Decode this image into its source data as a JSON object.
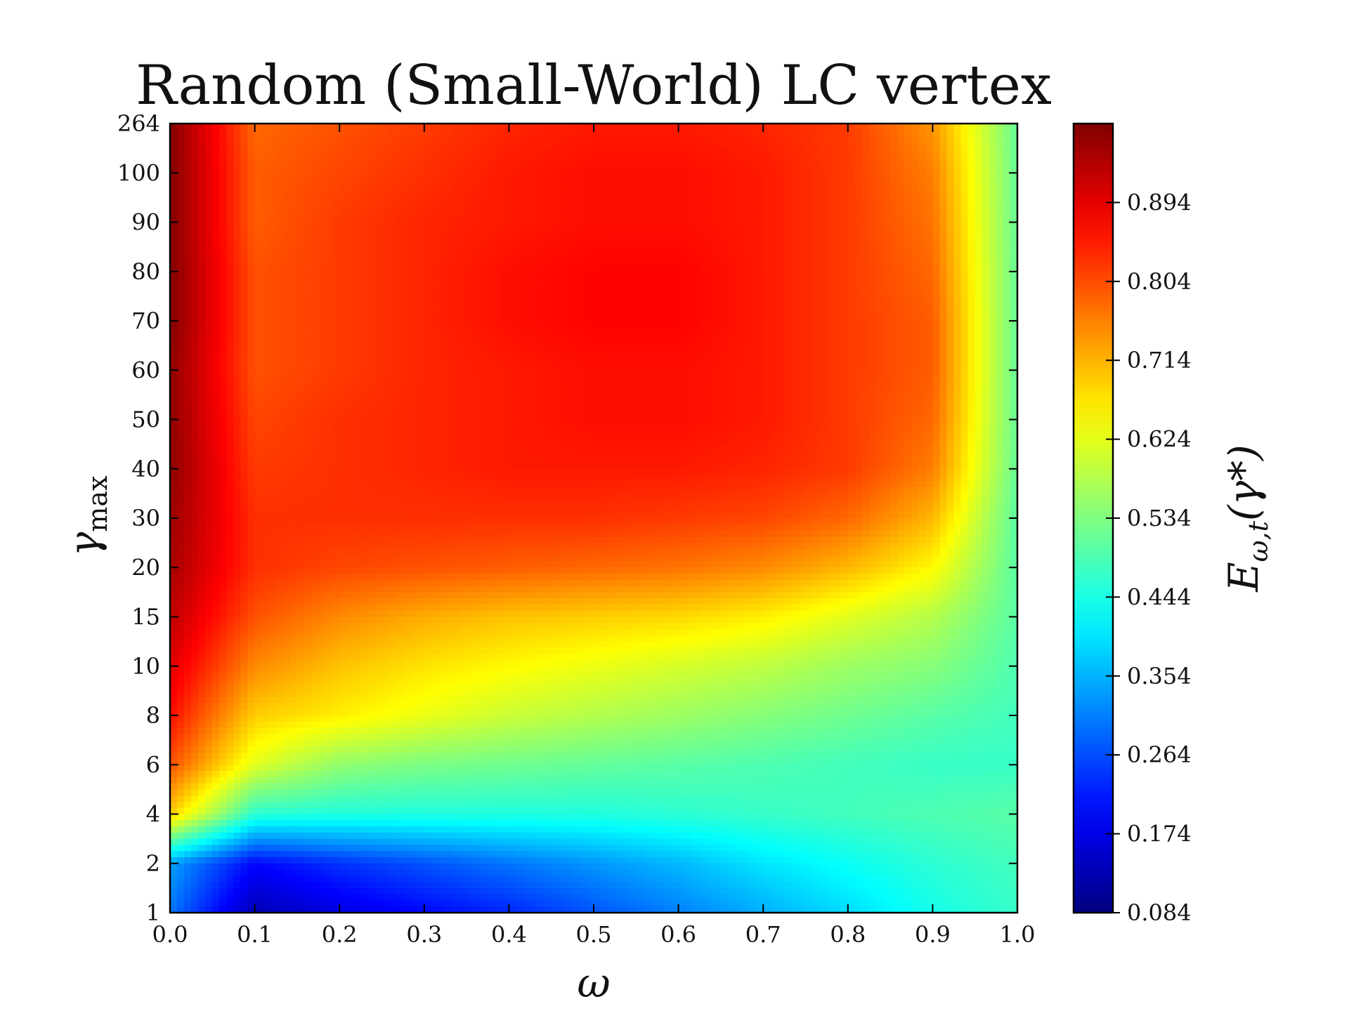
{
  "chart_data": {
    "type": "heatmap",
    "title": "Random (Small-World) LC vertex",
    "xlabel": "ω",
    "ylabel": "γmax",
    "ylabel_main": "γ",
    "ylabel_sub": "max",
    "colorbar_label": "E",
    "colorbar_label_sub": "ω,t",
    "colorbar_label_arg": "(γ*)",
    "x": [
      0.0,
      0.1,
      0.2,
      0.3,
      0.4,
      0.5,
      0.6,
      0.7,
      0.8,
      0.9,
      1.0
    ],
    "x_tick_labels": [
      "0.0",
      "0.1",
      "0.2",
      "0.3",
      "0.4",
      "0.5",
      "0.6",
      "0.7",
      "0.8",
      "0.9",
      "1.0"
    ],
    "y_tick_labels": [
      "1",
      "2",
      "4",
      "6",
      "8",
      "10",
      "15",
      "20",
      "30",
      "40",
      "50",
      "60",
      "70",
      "80",
      "90",
      "100",
      "264"
    ],
    "z": [
      [
        0.3,
        0.13,
        0.17,
        0.2,
        0.23,
        0.27,
        0.31,
        0.35,
        0.39,
        0.44,
        0.47
      ],
      [
        0.34,
        0.2,
        0.24,
        0.27,
        0.3,
        0.33,
        0.36,
        0.4,
        0.43,
        0.46,
        0.48
      ],
      [
        0.69,
        0.46,
        0.45,
        0.45,
        0.45,
        0.45,
        0.46,
        0.47,
        0.48,
        0.49,
        0.5
      ],
      [
        0.8,
        0.62,
        0.55,
        0.53,
        0.52,
        0.51,
        0.5,
        0.49,
        0.48,
        0.47,
        0.47
      ],
      [
        0.86,
        0.69,
        0.66,
        0.63,
        0.6,
        0.58,
        0.56,
        0.54,
        0.52,
        0.5,
        0.48
      ],
      [
        0.9,
        0.75,
        0.7,
        0.67,
        0.65,
        0.63,
        0.61,
        0.59,
        0.56,
        0.54,
        0.49
      ],
      [
        0.93,
        0.8,
        0.75,
        0.72,
        0.7,
        0.69,
        0.68,
        0.66,
        0.62,
        0.58,
        0.5
      ],
      [
        0.95,
        0.83,
        0.81,
        0.8,
        0.79,
        0.78,
        0.77,
        0.75,
        0.71,
        0.65,
        0.5
      ],
      [
        0.96,
        0.83,
        0.83,
        0.83,
        0.83,
        0.83,
        0.82,
        0.81,
        0.78,
        0.71,
        0.5
      ],
      [
        0.97,
        0.82,
        0.83,
        0.84,
        0.85,
        0.85,
        0.85,
        0.84,
        0.82,
        0.76,
        0.51
      ],
      [
        0.97,
        0.81,
        0.83,
        0.84,
        0.85,
        0.86,
        0.86,
        0.85,
        0.82,
        0.78,
        0.51
      ],
      [
        0.97,
        0.8,
        0.82,
        0.84,
        0.85,
        0.86,
        0.86,
        0.85,
        0.82,
        0.79,
        0.51
      ],
      [
        0.98,
        0.8,
        0.82,
        0.84,
        0.86,
        0.87,
        0.87,
        0.85,
        0.82,
        0.79,
        0.51
      ],
      [
        0.98,
        0.8,
        0.82,
        0.84,
        0.86,
        0.87,
        0.87,
        0.85,
        0.82,
        0.78,
        0.51
      ],
      [
        0.98,
        0.79,
        0.82,
        0.84,
        0.85,
        0.86,
        0.86,
        0.85,
        0.82,
        0.77,
        0.51
      ],
      [
        0.98,
        0.79,
        0.81,
        0.83,
        0.85,
        0.86,
        0.86,
        0.85,
        0.82,
        0.76,
        0.51
      ],
      [
        0.98,
        0.78,
        0.8,
        0.82,
        0.84,
        0.85,
        0.85,
        0.84,
        0.82,
        0.74,
        0.51
      ]
    ],
    "colorbar": {
      "colormap": "jet",
      "vmin": 0.084,
      "vmax": 0.984,
      "ticks": [
        0.084,
        0.174,
        0.264,
        0.354,
        0.444,
        0.534,
        0.624,
        0.714,
        0.804,
        0.894
      ],
      "tick_labels": [
        "0.084",
        "0.174",
        "0.264",
        "0.354",
        "0.444",
        "0.534",
        "0.624",
        "0.714",
        "0.804",
        "0.894"
      ]
    },
    "grid": false,
    "legend": "none"
  }
}
